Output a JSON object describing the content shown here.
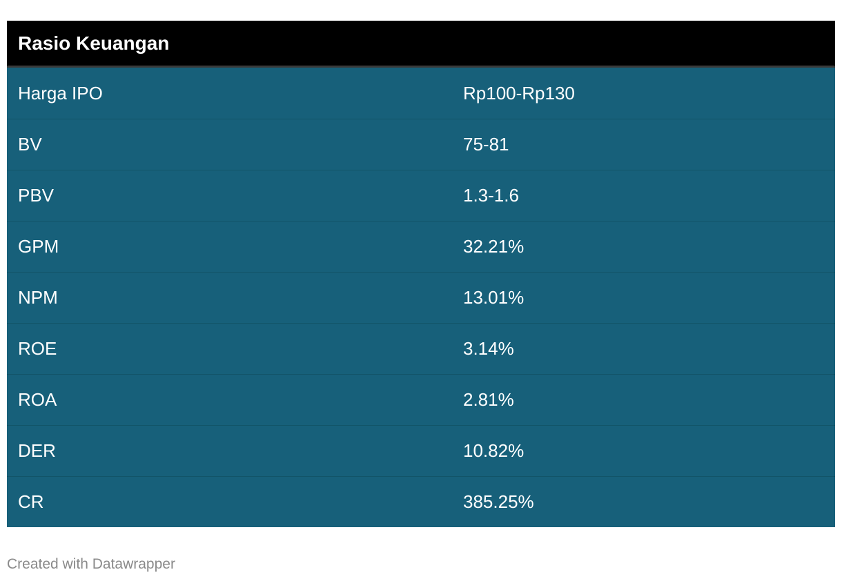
{
  "chart_data": {
    "type": "table",
    "title": "Rasio Keuangan",
    "rows": [
      {
        "label": "Harga IPO",
        "value": "Rp100-Rp130"
      },
      {
        "label": "BV",
        "value": "75-81"
      },
      {
        "label": "PBV",
        "value": "1.3-1.6"
      },
      {
        "label": "GPM",
        "value": "32.21%"
      },
      {
        "label": "NPM",
        "value": "13.01%"
      },
      {
        "label": "ROE",
        "value": "3.14%"
      },
      {
        "label": "ROA",
        "value": "2.81%"
      },
      {
        "label": "DER",
        "value": "10.82%"
      },
      {
        "label": "CR",
        "value": "385.25%"
      }
    ],
    "colors": {
      "header_bg": "#000000",
      "body_bg": "#17607a",
      "text": "#ffffff"
    }
  },
  "footer": {
    "credit": "Created with Datawrapper"
  }
}
